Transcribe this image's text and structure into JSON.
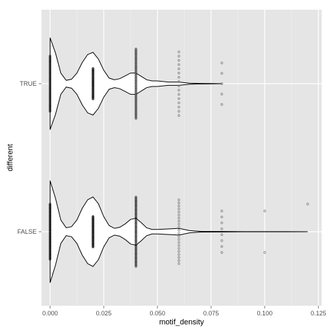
{
  "chart_data": {
    "type": "violin",
    "orientation": "horizontal",
    "xlabel": "motif_density",
    "ylabel": "different",
    "xlim": [
      -0.004,
      0.1265
    ],
    "x_ticks": [
      {
        "value": 0.0,
        "label": "0.000"
      },
      {
        "value": 0.025,
        "label": "0.025"
      },
      {
        "value": 0.05,
        "label": "0.050"
      },
      {
        "value": 0.075,
        "label": "0.075"
      },
      {
        "value": 0.1,
        "label": "0.100"
      },
      {
        "value": 0.125,
        "label": "0.125"
      }
    ],
    "categories": [
      "FALSE",
      "TRUE"
    ],
    "grid": true,
    "panel_background": "#e5e5e5",
    "grid_color": "#ffffff",
    "violins": [
      {
        "category": "TRUE",
        "profile": [
          [
            0.0,
            0.82
          ],
          [
            0.0025,
            0.55
          ],
          [
            0.005,
            0.19
          ],
          [
            0.0075,
            0.06
          ],
          [
            0.01,
            0.08
          ],
          [
            0.0125,
            0.19
          ],
          [
            0.015,
            0.38
          ],
          [
            0.0175,
            0.52
          ],
          [
            0.02,
            0.56
          ],
          [
            0.0225,
            0.44
          ],
          [
            0.025,
            0.24
          ],
          [
            0.0275,
            0.1
          ],
          [
            0.03,
            0.07
          ],
          [
            0.0325,
            0.09
          ],
          [
            0.035,
            0.14
          ],
          [
            0.0375,
            0.19
          ],
          [
            0.04,
            0.19
          ],
          [
            0.0425,
            0.13
          ],
          [
            0.045,
            0.07
          ],
          [
            0.0475,
            0.05
          ],
          [
            0.05,
            0.05
          ],
          [
            0.055,
            0.03
          ],
          [
            0.06,
            0.03
          ],
          [
            0.065,
            0.01
          ],
          [
            0.07,
            0.005
          ],
          [
            0.075,
            0.0025
          ],
          [
            0.08,
            0.0
          ]
        ],
        "points": [
          {
            "x": 0.0,
            "n": 44
          },
          {
            "x": 0.02,
            "n": 46
          },
          {
            "x": 0.04,
            "n": 46
          },
          {
            "x": 0.06,
            "n": 16
          },
          {
            "x": 0.08,
            "n": 5
          }
        ]
      },
      {
        "category": "FALSE",
        "profile": [
          [
            0.0,
            0.91
          ],
          [
            0.0025,
            0.6
          ],
          [
            0.005,
            0.21
          ],
          [
            0.0075,
            0.07
          ],
          [
            0.01,
            0.09
          ],
          [
            0.0125,
            0.21
          ],
          [
            0.015,
            0.42
          ],
          [
            0.0175,
            0.57
          ],
          [
            0.02,
            0.62
          ],
          [
            0.0225,
            0.5
          ],
          [
            0.025,
            0.27
          ],
          [
            0.0275,
            0.11
          ],
          [
            0.03,
            0.06
          ],
          [
            0.0325,
            0.08
          ],
          [
            0.035,
            0.14
          ],
          [
            0.0375,
            0.22
          ],
          [
            0.04,
            0.24
          ],
          [
            0.0425,
            0.16
          ],
          [
            0.045,
            0.07
          ],
          [
            0.0475,
            0.04
          ],
          [
            0.05,
            0.04
          ],
          [
            0.055,
            0.05
          ],
          [
            0.06,
            0.06
          ],
          [
            0.065,
            0.02
          ],
          [
            0.07,
            0.006
          ],
          [
            0.08,
            0.004
          ],
          [
            0.09,
            0.002
          ],
          [
            0.1,
            0.0015
          ],
          [
            0.11,
            0.001
          ],
          [
            0.12,
            0.0
          ]
        ],
        "points": [
          {
            "x": 0.0,
            "n": 50
          },
          {
            "x": 0.02,
            "n": 50
          },
          {
            "x": 0.04,
            "n": 50
          },
          {
            "x": 0.06,
            "n": 22
          },
          {
            "x": 0.08,
            "n": 8
          },
          {
            "x": 0.1,
            "n": 2
          },
          {
            "x": 0.12,
            "n": 1
          }
        ]
      }
    ]
  }
}
